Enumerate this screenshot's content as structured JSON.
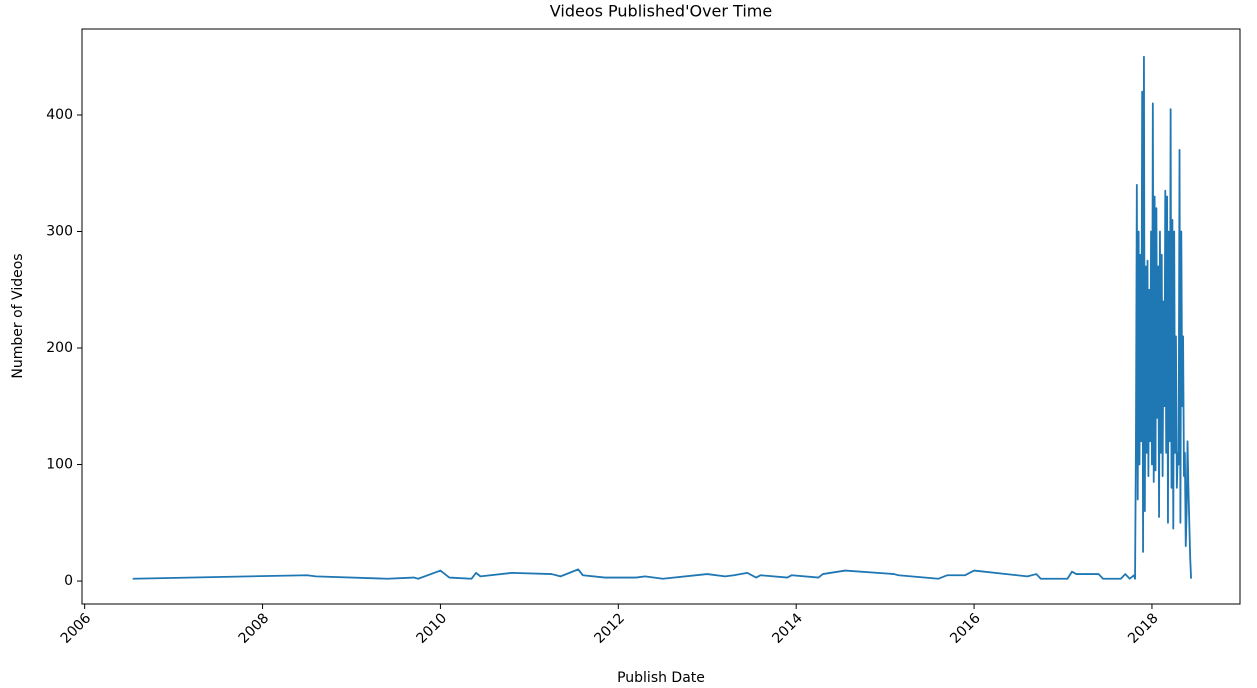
{
  "chart_data": {
    "type": "line",
    "title": "Videos Published'Over Time",
    "x_label": "Publish Date",
    "y_label": "Number of Videos",
    "xlim": [
      2005.97,
      2018.99
    ],
    "xticks": [
      2006,
      2008,
      2010,
      2012,
      2014,
      2016,
      2018
    ],
    "ylim": [
      -19.7,
      473.8
    ],
    "yticks": [
      0,
      100,
      200,
      300,
      400
    ],
    "series": [
      {
        "color": "#1f77b4",
        "x": [
          2006.54,
          2008.5,
          2008.6,
          2009.4,
          2009.7,
          2009.75,
          2010.0,
          2010.1,
          2010.35,
          2010.4,
          2010.45,
          2010.8,
          2011.25,
          2011.35,
          2011.55,
          2011.6,
          2011.85,
          2012.2,
          2012.3,
          2012.5,
          2013.0,
          2013.2,
          2013.3,
          2013.45,
          2013.55,
          2013.6,
          2013.9,
          2013.95,
          2014.25,
          2014.3,
          2014.55,
          2015.1,
          2015.15,
          2015.6,
          2015.7,
          2015.9,
          2016.0,
          2016.6,
          2016.7,
          2016.75,
          2017.05,
          2017.1,
          2017.15,
          2017.4,
          2017.45,
          2017.65,
          2017.7,
          2017.75,
          2017.8,
          2017.81,
          2017.82,
          2017.83,
          2017.84,
          2017.85,
          2017.86,
          2017.87,
          2017.88,
          2017.89,
          2017.9,
          2017.91,
          2017.92,
          2017.93,
          2017.94,
          2017.95,
          2017.96,
          2017.97,
          2017.98,
          2017.99,
          2018.0,
          2018.01,
          2018.02,
          2018.03,
          2018.04,
          2018.05,
          2018.06,
          2018.07,
          2018.08,
          2018.09,
          2018.1,
          2018.11,
          2018.12,
          2018.13,
          2018.14,
          2018.15,
          2018.16,
          2018.17,
          2018.18,
          2018.19,
          2018.2,
          2018.21,
          2018.22,
          2018.23,
          2018.24,
          2018.25,
          2018.26,
          2018.27,
          2018.28,
          2018.29,
          2018.3,
          2018.31,
          2018.32,
          2018.33,
          2018.34,
          2018.35,
          2018.36,
          2018.37,
          2018.38,
          2018.39,
          2018.4,
          2018.41,
          2018.42,
          2018.43,
          2018.44
        ],
        "values": [
          2,
          5,
          4,
          2,
          3,
          2,
          9,
          3,
          2,
          7,
          4,
          7,
          6,
          4,
          10,
          5,
          3,
          3,
          4,
          2,
          6,
          4,
          5,
          7,
          3,
          5,
          3,
          5,
          3,
          6,
          9,
          6,
          5,
          2,
          5,
          5,
          9,
          4,
          6,
          2,
          2,
          8,
          6,
          6,
          2,
          2,
          6,
          2,
          5,
          2,
          120,
          340,
          70,
          300,
          100,
          280,
          120,
          420,
          25,
          450,
          60,
          270,
          110,
          275,
          90,
          250,
          120,
          300,
          100,
          410,
          85,
          330,
          95,
          320,
          140,
          270,
          55,
          300,
          110,
          280,
          90,
          240,
          150,
          335,
          110,
          330,
          50,
          300,
          120,
          405,
          80,
          310,
          45,
          300,
          110,
          210,
          80,
          110,
          100,
          370,
          50,
          300,
          150,
          210,
          90,
          110,
          30,
          60,
          120,
          80,
          50,
          20,
          2
        ]
      }
    ]
  }
}
